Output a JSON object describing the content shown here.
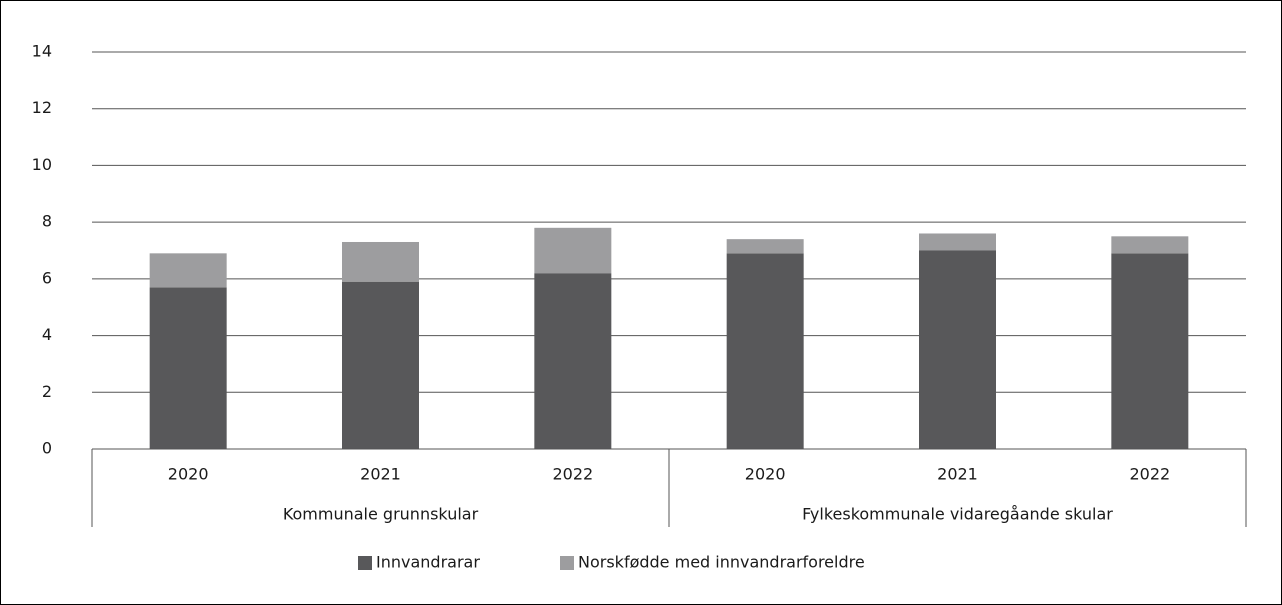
{
  "chart_data": {
    "type": "stacked_bar",
    "categories": [
      "2020",
      "2021",
      "2022",
      "2020",
      "2021",
      "2022"
    ],
    "groups": [
      "Kommunale grunnskular",
      "Fylkeskommunale vidaregåande skular"
    ],
    "series": [
      {
        "name": "Innvandrarar",
        "color": "#58585a",
        "values": [
          5.7,
          5.9,
          6.2,
          6.9,
          7.0,
          6.9
        ]
      },
      {
        "name": "Norskfødde med innvandrarforeldre",
        "color": "#9d9d9f",
        "values": [
          1.2,
          1.4,
          1.6,
          0.5,
          0.6,
          0.6
        ]
      }
    ],
    "ylim": [
      0,
      14
    ],
    "yticks": [
      0,
      2,
      4,
      6,
      8,
      10,
      12,
      14
    ],
    "grid": true,
    "legend": "bottom"
  }
}
